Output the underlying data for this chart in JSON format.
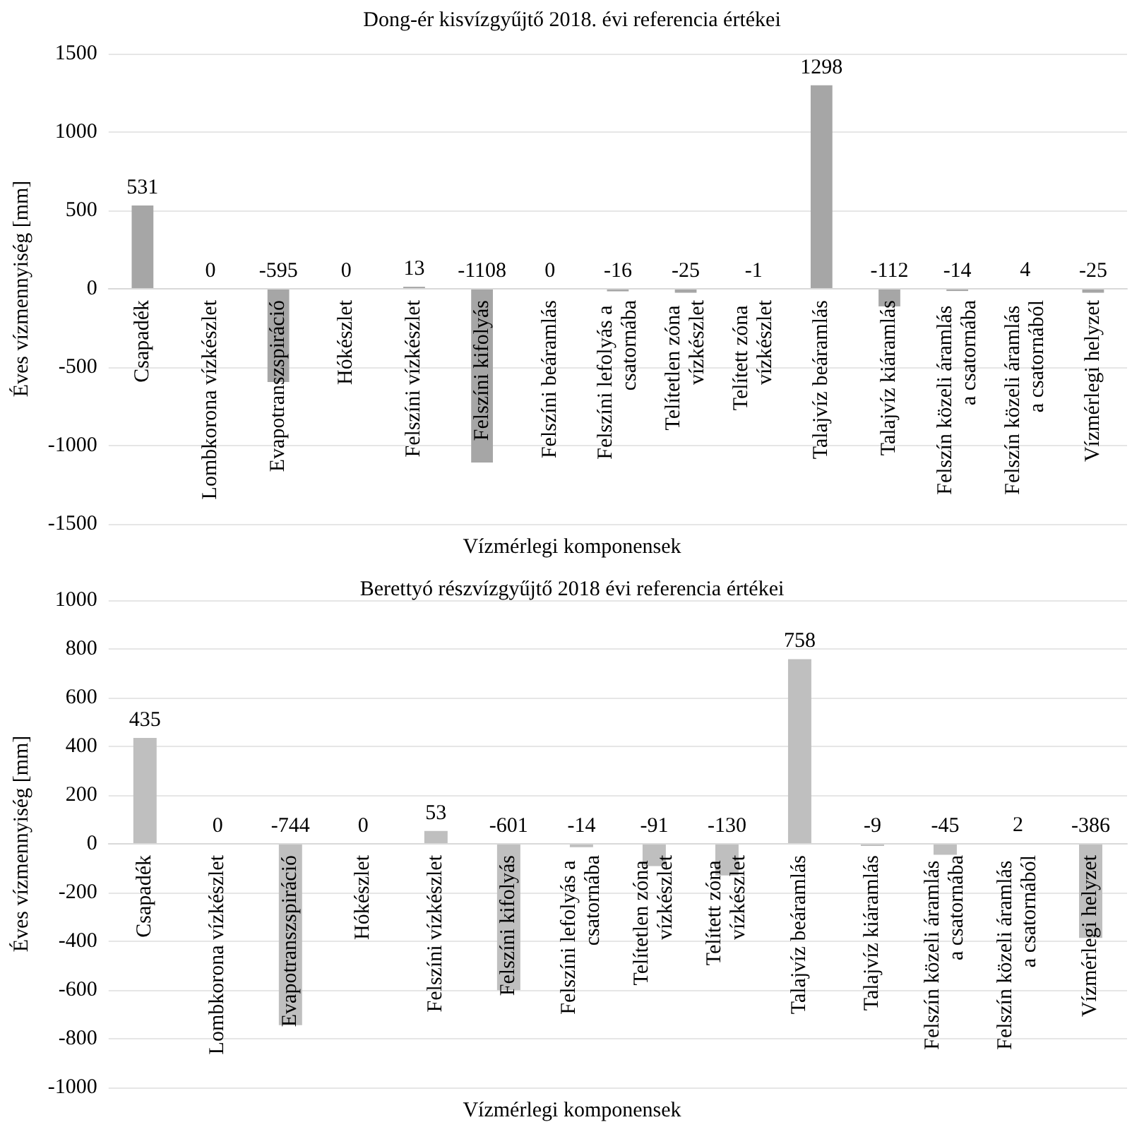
{
  "chart_data": [
    {
      "type": "bar",
      "title": "Dong-ér kisvízgyűjtő 2018. évi referencia értékei",
      "xlabel": "Vízmérlegi komponensek",
      "ylabel": "Éves vízmennyiség [mm]",
      "categories": [
        "Csapadék",
        "Lombkorona vízkészlet",
        "Evapotranszspiráció",
        "Hókészlet",
        "Felszíni vízkészlet",
        "Felszíni kifolyás",
        "Felszíni beáramlás",
        "Felszíni lefolyás a csatornába",
        "Telítetlen zóna vízkészlet",
        "Telített zóna vízkészlet",
        "Talajvíz beáramlás",
        "Talajvíz kiáramlás",
        "Felszín közeli áramlás a csatornába",
        "Felszín közeli áramlás a csatornából",
        "Vízmérlegi helyzet"
      ],
      "values": [
        531,
        0,
        -595,
        0,
        13,
        -1108,
        0,
        -16,
        -25,
        -1,
        1298,
        -112,
        -14,
        4,
        -25
      ],
      "color": "#a6a6a6",
      "ylim": [
        -1500,
        1500
      ],
      "yticks": [
        -1500,
        -1000,
        -500,
        0,
        500,
        1000,
        1500
      ],
      "grid": "y",
      "data_labels": true
    },
    {
      "type": "bar",
      "title": "Berettyó részvízgyűjtő 2018 évi referencia értékei",
      "xlabel": "Vízmérlegi komponensek",
      "ylabel": "Éves vízmennyiség [mm]",
      "categories": [
        "Csapadék",
        "Lombkorona vízkészlet",
        "Evapotranszspiráció",
        "Hókészlet",
        "Felszíni vízkészlet",
        "Felszíni kifolyás",
        "Felszíni lefolyás a csatornába",
        "Telítetlen zóna vízkészlet",
        "Telített zóna vízkészlet",
        "Talajvíz beáramlás",
        "Talajvíz kiáramlás",
        "Felszín közeli áramlás a csatornába",
        "Felszín közeli áramlás a csatornából",
        "Vízmérlegi helyzet"
      ],
      "values": [
        435,
        0,
        -744,
        0,
        53,
        -601,
        -14,
        -91,
        -130,
        758,
        -9,
        -45,
        2,
        -386
      ],
      "color": "#bfbfbf",
      "ylim": [
        -1000,
        1000
      ],
      "yticks": [
        -1000,
        -800,
        -600,
        -400,
        -200,
        0,
        200,
        400,
        600,
        800,
        1000
      ],
      "grid": "y",
      "data_labels": true
    }
  ]
}
